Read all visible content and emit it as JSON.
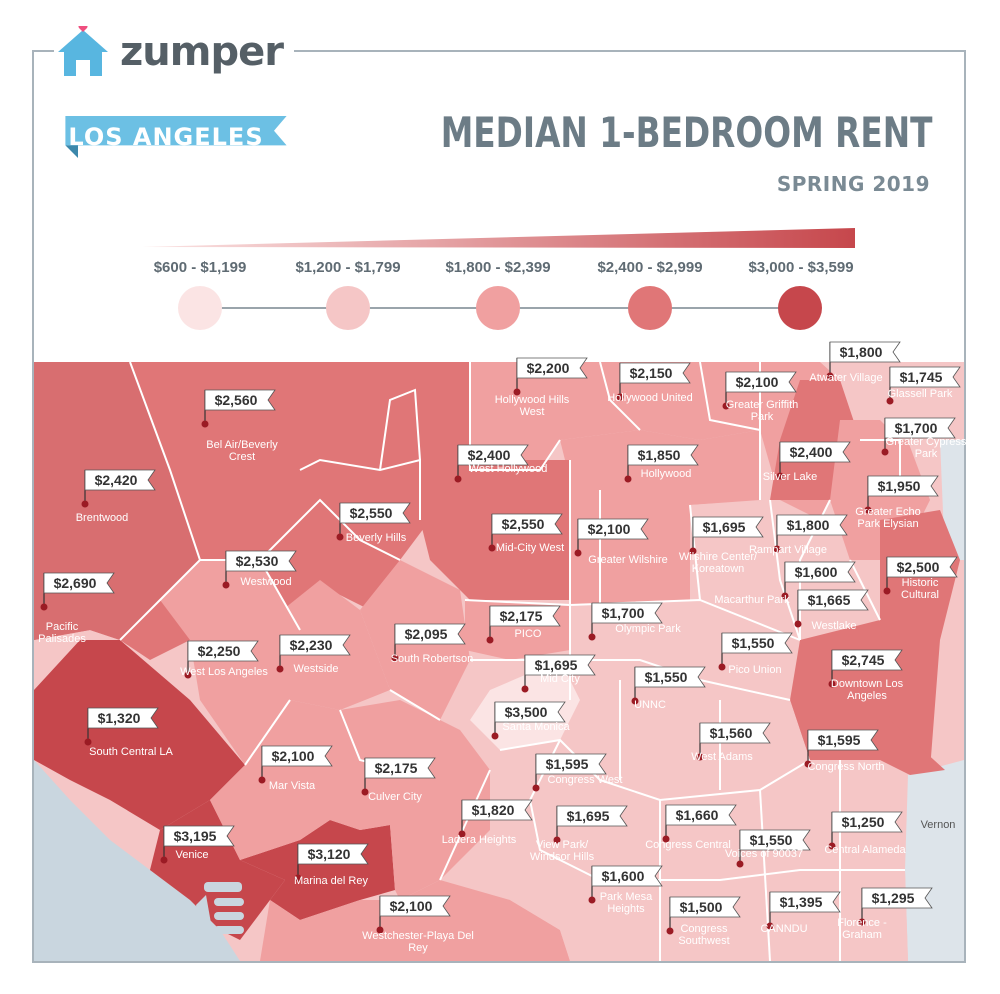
{
  "brand": {
    "logo_text": "zumper"
  },
  "header": {
    "city": "LOS ANGELES",
    "title": "MEDIAN 1-BEDROOM RENT",
    "subtitle": "SPRING 2019"
  },
  "legend": {
    "ranges": [
      {
        "label": "$600 - $1,199",
        "color": "#fbe4e4"
      },
      {
        "label": "$1,200 - $1,799",
        "color": "#f5c6c6"
      },
      {
        "label": "$1,800 - $2,399",
        "color": "#f0a0a0"
      },
      {
        "label": "$2,400 - $2,999",
        "color": "#e07677"
      },
      {
        "label": "$3,000 - $3,599",
        "color": "#c6474c"
      }
    ]
  },
  "neighborhoods": [
    {
      "name": "Bel Air/Beverly Crest",
      "price": "$2,560"
    },
    {
      "name": "Brentwood",
      "price": "$2,420"
    },
    {
      "name": "Pacific Palisades",
      "price": "$2,690"
    },
    {
      "name": "Hollywood Hills West",
      "price": "$2,200"
    },
    {
      "name": "Hollywood United",
      "price": "$2,150"
    },
    {
      "name": "Greater Griffith Park",
      "price": "$2,100"
    },
    {
      "name": "Atwater Village",
      "price": "$1,800"
    },
    {
      "name": "Glassell Park",
      "price": "$1,745"
    },
    {
      "name": "Greater Cypress Park",
      "price": "$1,700"
    },
    {
      "name": "West Hollywood",
      "price": "$2,400"
    },
    {
      "name": "Hollywood",
      "price": "$1,850"
    },
    {
      "name": "Silver Lake",
      "price": "$2,400"
    },
    {
      "name": "Greater Echo Park Elysian",
      "price": "$1,950"
    },
    {
      "name": "Beverly Hills",
      "price": "$2,550"
    },
    {
      "name": "Mid-City West",
      "price": "$2,550"
    },
    {
      "name": "Greater Wilshire",
      "price": "$2,100"
    },
    {
      "name": "Wilshire Center/ Koreatown",
      "price": "$1,695"
    },
    {
      "name": "Rampart Village",
      "price": "$1,800"
    },
    {
      "name": "Westwood",
      "price": "$2,530"
    },
    {
      "name": "Historic Cultural",
      "price": "$2,500"
    },
    {
      "name": "Macarthur Park",
      "price": "$1,600"
    },
    {
      "name": "Westlake",
      "price": "$1,665"
    },
    {
      "name": "PICO",
      "price": "$2,175"
    },
    {
      "name": "Olympic Park",
      "price": "$1,700"
    },
    {
      "name": "West Los Angeles",
      "price": "$2,250"
    },
    {
      "name": "Westside",
      "price": "$2,230"
    },
    {
      "name": "South Robertson",
      "price": "$2,095"
    },
    {
      "name": "Pico Union",
      "price": "$1,550"
    },
    {
      "name": "Mid City",
      "price": "$1,695"
    },
    {
      "name": "Downtown Los Angeles",
      "price": "$2,745"
    },
    {
      "name": "UNNC",
      "price": "$1,550"
    },
    {
      "name": "Santa Monica",
      "price": "$3,500"
    },
    {
      "name": "West Adams",
      "price": "$1,560"
    },
    {
      "name": "Congress North",
      "price": "$1,595"
    },
    {
      "name": "South Central LA",
      "price": "$1,320"
    },
    {
      "name": "Mar Vista",
      "price": "$2,100"
    },
    {
      "name": "Culver City",
      "price": "$2,175"
    },
    {
      "name": "Congress West",
      "price": "$1,595"
    },
    {
      "name": "Ladera Heights",
      "price": "$1,820"
    },
    {
      "name": "View Park/ Windsor Hills",
      "price": "$1,695"
    },
    {
      "name": "Congress Central",
      "price": "$1,660"
    },
    {
      "name": "Voices of 90037",
      "price": "$1,550"
    },
    {
      "name": "Central Alameda",
      "price": "$1,250"
    },
    {
      "name": "Venice",
      "price": "$3,195"
    },
    {
      "name": "Marina del Rey",
      "price": "$3,120"
    },
    {
      "name": "Park Mesa Heights",
      "price": "$1,600"
    },
    {
      "name": "Congress Southwest",
      "price": "$1,500"
    },
    {
      "name": "CANNDU",
      "price": "$1,395"
    },
    {
      "name": "Florence - Graham",
      "price": "$1,295"
    },
    {
      "name": "Westchester-Playa Del Rey",
      "price": "$2,100"
    }
  ],
  "other_labels": {
    "vernon": "Vernon"
  }
}
